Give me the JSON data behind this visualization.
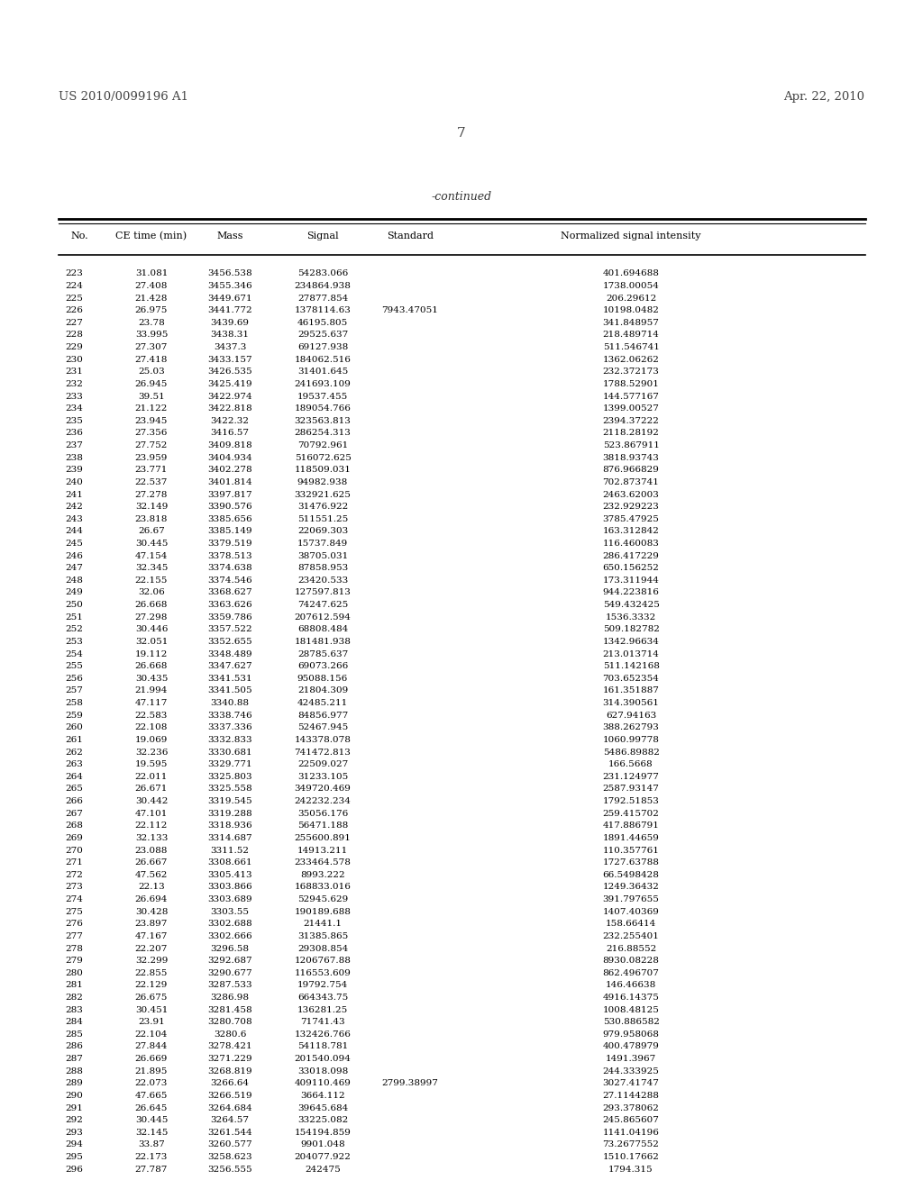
{
  "patent_number": "US 2010/0099196 A1",
  "date": "Apr. 22, 2010",
  "page_number": "7",
  "continued_label": "-continued",
  "headers": [
    "No.",
    "CE time (min)",
    "Mass",
    "Signal",
    "Standard",
    "Normalized signal intensity"
  ],
  "rows": [
    [
      223,
      "31.081",
      "3456.538",
      "54283.066",
      "",
      "401.694688"
    ],
    [
      224,
      "27.408",
      "3455.346",
      "234864.938",
      "",
      "1738.00054"
    ],
    [
      225,
      "21.428",
      "3449.671",
      "27877.854",
      "",
      "206.29612"
    ],
    [
      226,
      "26.975",
      "3441.772",
      "1378114.63",
      "7943.47051",
      "10198.0482"
    ],
    [
      227,
      "23.78",
      "3439.69",
      "46195.805",
      "",
      "341.848957"
    ],
    [
      228,
      "33.995",
      "3438.31",
      "29525.637",
      "",
      "218.489714"
    ],
    [
      229,
      "27.307",
      "3437.3",
      "69127.938",
      "",
      "511.546741"
    ],
    [
      230,
      "27.418",
      "3433.157",
      "184062.516",
      "",
      "1362.06262"
    ],
    [
      231,
      "25.03",
      "3426.535",
      "31401.645",
      "",
      "232.372173"
    ],
    [
      232,
      "26.945",
      "3425.419",
      "241693.109",
      "",
      "1788.52901"
    ],
    [
      233,
      "39.51",
      "3422.974",
      "19537.455",
      "",
      "144.577167"
    ],
    [
      234,
      "21.122",
      "3422.818",
      "189054.766",
      "",
      "1399.00527"
    ],
    [
      235,
      "23.945",
      "3422.32",
      "323563.813",
      "",
      "2394.37222"
    ],
    [
      236,
      "27.356",
      "3416.57",
      "286254.313",
      "",
      "2118.28192"
    ],
    [
      237,
      "27.752",
      "3409.818",
      "70792.961",
      "",
      "523.867911"
    ],
    [
      238,
      "23.959",
      "3404.934",
      "516072.625",
      "",
      "3818.93743"
    ],
    [
      239,
      "23.771",
      "3402.278",
      "118509.031",
      "",
      "876.966829"
    ],
    [
      240,
      "22.537",
      "3401.814",
      "94982.938",
      "",
      "702.873741"
    ],
    [
      241,
      "27.278",
      "3397.817",
      "332921.625",
      "",
      "2463.62003"
    ],
    [
      242,
      "32.149",
      "3390.576",
      "31476.922",
      "",
      "232.929223"
    ],
    [
      243,
      "23.818",
      "3385.656",
      "511551.25",
      "",
      "3785.47925"
    ],
    [
      244,
      "26.67",
      "3385.149",
      "22069.303",
      "",
      "163.312842"
    ],
    [
      245,
      "30.445",
      "3379.519",
      "15737.849",
      "",
      "116.460083"
    ],
    [
      246,
      "47.154",
      "3378.513",
      "38705.031",
      "",
      "286.417229"
    ],
    [
      247,
      "32.345",
      "3374.638",
      "87858.953",
      "",
      "650.156252"
    ],
    [
      248,
      "22.155",
      "3374.546",
      "23420.533",
      "",
      "173.311944"
    ],
    [
      249,
      "32.06",
      "3368.627",
      "127597.813",
      "",
      "944.223816"
    ],
    [
      250,
      "26.668",
      "3363.626",
      "74247.625",
      "",
      "549.432425"
    ],
    [
      251,
      "27.298",
      "3359.786",
      "207612.594",
      "",
      "1536.3332"
    ],
    [
      252,
      "30.446",
      "3357.522",
      "68808.484",
      "",
      "509.182782"
    ],
    [
      253,
      "32.051",
      "3352.655",
      "181481.938",
      "",
      "1342.96634"
    ],
    [
      254,
      "19.112",
      "3348.489",
      "28785.637",
      "",
      "213.013714"
    ],
    [
      255,
      "26.668",
      "3347.627",
      "69073.266",
      "",
      "511.142168"
    ],
    [
      256,
      "30.435",
      "3341.531",
      "95088.156",
      "",
      "703.652354"
    ],
    [
      257,
      "21.994",
      "3341.505",
      "21804.309",
      "",
      "161.351887"
    ],
    [
      258,
      "47.117",
      "3340.88",
      "42485.211",
      "",
      "314.390561"
    ],
    [
      259,
      "22.583",
      "3338.746",
      "84856.977",
      "",
      "627.94163"
    ],
    [
      260,
      "22.108",
      "3337.336",
      "52467.945",
      "",
      "388.262793"
    ],
    [
      261,
      "19.069",
      "3332.833",
      "143378.078",
      "",
      "1060.99778"
    ],
    [
      262,
      "32.236",
      "3330.681",
      "741472.813",
      "",
      "5486.89882"
    ],
    [
      263,
      "19.595",
      "3329.771",
      "22509.027",
      "",
      "166.5668"
    ],
    [
      264,
      "22.011",
      "3325.803",
      "31233.105",
      "",
      "231.124977"
    ],
    [
      265,
      "26.671",
      "3325.558",
      "349720.469",
      "",
      "2587.93147"
    ],
    [
      266,
      "30.442",
      "3319.545",
      "242232.234",
      "",
      "1792.51853"
    ],
    [
      267,
      "47.101",
      "3319.288",
      "35056.176",
      "",
      "259.415702"
    ],
    [
      268,
      "22.112",
      "3318.936",
      "56471.188",
      "",
      "417.886791"
    ],
    [
      269,
      "32.133",
      "3314.687",
      "255600.891",
      "",
      "1891.44659"
    ],
    [
      270,
      "23.088",
      "3311.52",
      "14913.211",
      "",
      "110.357761"
    ],
    [
      271,
      "26.667",
      "3308.661",
      "233464.578",
      "",
      "1727.63788"
    ],
    [
      272,
      "47.562",
      "3305.413",
      "8993.222",
      "",
      "66.5498428"
    ],
    [
      273,
      "22.13",
      "3303.866",
      "168833.016",
      "",
      "1249.36432"
    ],
    [
      274,
      "26.694",
      "3303.689",
      "52945.629",
      "",
      "391.797655"
    ],
    [
      275,
      "30.428",
      "3303.55",
      "190189.688",
      "",
      "1407.40369"
    ],
    [
      276,
      "23.897",
      "3302.688",
      "21441.1",
      "",
      "158.66414"
    ],
    [
      277,
      "47.167",
      "3302.666",
      "31385.865",
      "",
      "232.255401"
    ],
    [
      278,
      "22.207",
      "3296.58",
      "29308.854",
      "",
      "216.88552"
    ],
    [
      279,
      "32.299",
      "3292.687",
      "1206767.88",
      "",
      "8930.08228"
    ],
    [
      280,
      "22.855",
      "3290.677",
      "116553.609",
      "",
      "862.496707"
    ],
    [
      281,
      "22.129",
      "3287.533",
      "19792.754",
      "",
      "146.46638"
    ],
    [
      282,
      "26.675",
      "3286.98",
      "664343.75",
      "",
      "4916.14375"
    ],
    [
      283,
      "30.451",
      "3281.458",
      "136281.25",
      "",
      "1008.48125"
    ],
    [
      284,
      "23.91",
      "3280.708",
      "71741.43",
      "",
      "530.886582"
    ],
    [
      285,
      "22.104",
      "3280.6",
      "132426.766",
      "",
      "979.958068"
    ],
    [
      286,
      "27.844",
      "3278.421",
      "54118.781",
      "",
      "400.478979"
    ],
    [
      287,
      "26.669",
      "3271.229",
      "201540.094",
      "",
      "1491.3967"
    ],
    [
      288,
      "21.895",
      "3268.819",
      "33018.098",
      "",
      "244.333925"
    ],
    [
      289,
      "22.073",
      "3266.64",
      "409110.469",
      "2799.38997",
      "3027.41747"
    ],
    [
      290,
      "47.665",
      "3266.519",
      "3664.112",
      "",
      "27.1144288"
    ],
    [
      291,
      "26.645",
      "3264.684",
      "39645.684",
      "",
      "293.378062"
    ],
    [
      292,
      "30.445",
      "3264.57",
      "33225.082",
      "",
      "245.865607"
    ],
    [
      293,
      "32.145",
      "3261.544",
      "154194.859",
      "",
      "1141.04196"
    ],
    [
      294,
      "33.87",
      "3260.577",
      "9901.048",
      "",
      "73.2677552"
    ],
    [
      295,
      "22.173",
      "3258.623",
      "204077.922",
      "",
      "1510.17662"
    ],
    [
      296,
      "27.787",
      "3256.555",
      "242475",
      "",
      "1794.315"
    ]
  ]
}
